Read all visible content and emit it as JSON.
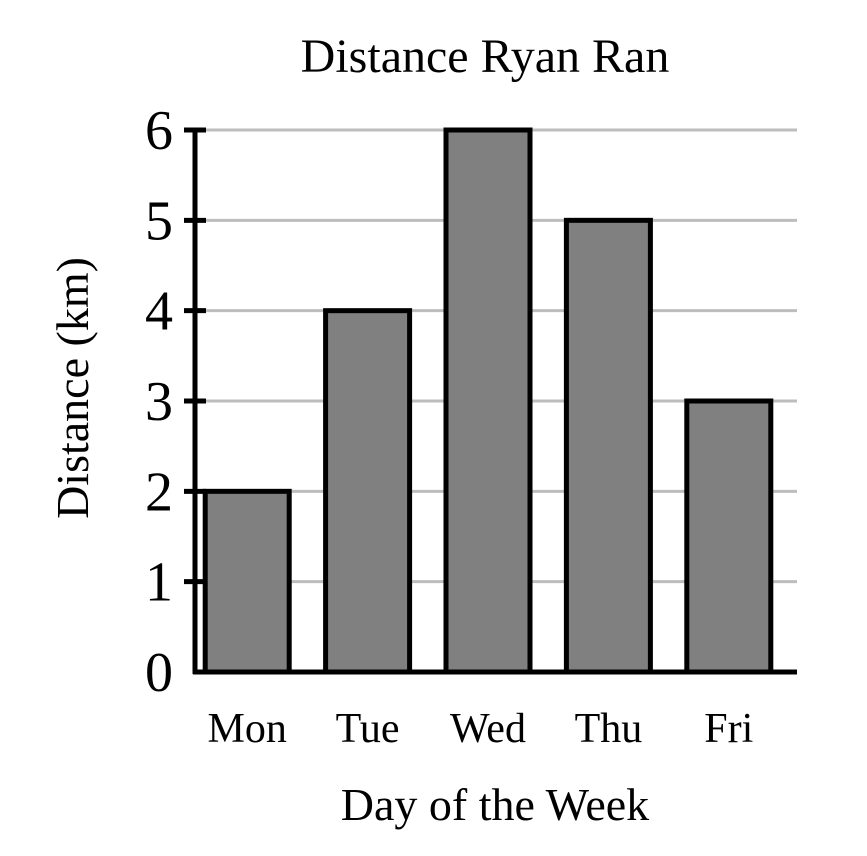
{
  "chart_data": {
    "type": "bar",
    "title": "Distance Ryan Ran",
    "xlabel": "Day of the Week",
    "ylabel": "Distance (km)",
    "categories": [
      "Mon",
      "Tue",
      "Wed",
      "Thu",
      "Fri"
    ],
    "values": [
      2,
      4,
      6,
      5,
      3
    ],
    "ylim": [
      0,
      6
    ],
    "yticks": [
      0,
      1,
      2,
      3,
      4,
      5,
      6
    ],
    "grid": true,
    "bar_color": "#808080",
    "grid_color": "#bdbdbd"
  }
}
